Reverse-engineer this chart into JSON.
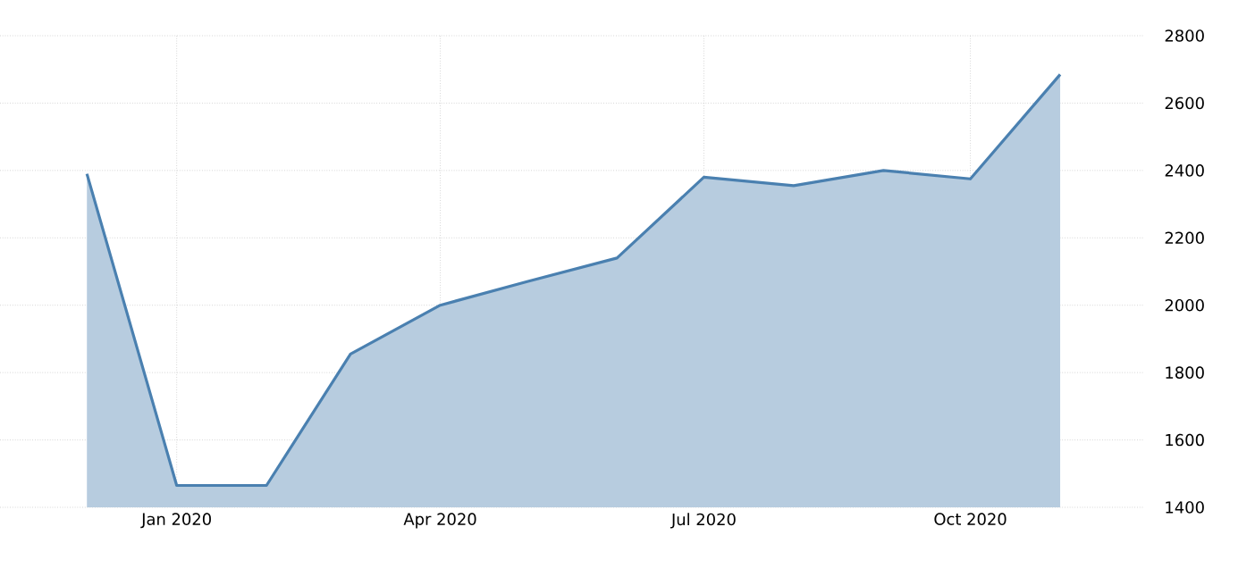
{
  "chart_data": {
    "type": "area",
    "x": [
      "2019-12",
      "2020-01",
      "2020-02",
      "2020-03",
      "2020-04",
      "2020-05",
      "2020-06",
      "2020-07",
      "2020-08",
      "2020-09",
      "2020-10",
      "2020-11"
    ],
    "values": [
      2390,
      1465,
      1465,
      1855,
      2000,
      2070,
      2140,
      2380,
      2355,
      2400,
      2375,
      2685
    ],
    "color": "#4a80b0",
    "xlim": [
      "2019-11-01",
      "2020-11-30"
    ],
    "xticks": [
      {
        "value": "2020-01",
        "label": "Jan 2020"
      },
      {
        "value": "2020-04",
        "label": "Apr 2020"
      },
      {
        "value": "2020-07",
        "label": "Jul 2020"
      },
      {
        "value": "2020-10",
        "label": "Oct 2020"
      }
    ],
    "ylim": [
      1400,
      2800
    ],
    "yticks": [
      1400,
      1600,
      1800,
      2000,
      2200,
      2400,
      2600,
      2800
    ],
    "grid": true
  }
}
